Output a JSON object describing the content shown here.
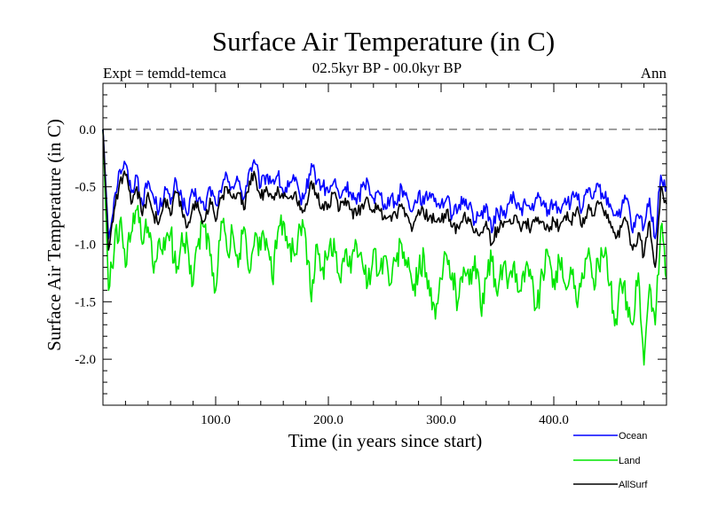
{
  "chart_data": {
    "type": "line",
    "title": "Surface Air Temperature (in C)",
    "subtitle": "02.5kyr BP - 00.0kyr BP",
    "expt_label": "Expt = temdd-temca",
    "season_label": "Ann",
    "xlabel": "Time (in years since start)",
    "ylabel": "Surface Air Temperature (in C)",
    "xlim": [
      0,
      500
    ],
    "ylim": [
      -2.4,
      0.4
    ],
    "x_ticks": [
      100,
      200,
      300,
      400
    ],
    "x_tick_labels": [
      "100.0",
      "200.0",
      "300.0",
      "400.0"
    ],
    "y_ticks": [
      0.0,
      -0.5,
      -1.0,
      -1.5,
      -2.0
    ],
    "y_tick_labels": [
      "0.0",
      "-0.5",
      "-1.0",
      "-1.5",
      "-2.0"
    ],
    "reference_line": {
      "y": 0.0,
      "style": "dashed",
      "color": "#808080"
    },
    "legend_position": "bottom-right, below plot",
    "series": [
      {
        "name": "Ocean",
        "color": "#0000ff",
        "x": [
          0,
          5,
          10,
          15,
          20,
          25,
          30,
          35,
          40,
          45,
          50,
          55,
          60,
          65,
          70,
          75,
          80,
          85,
          90,
          95,
          100,
          105,
          110,
          115,
          120,
          125,
          130,
          135,
          140,
          145,
          150,
          155,
          160,
          165,
          170,
          175,
          180,
          185,
          190,
          195,
          200,
          205,
          210,
          215,
          220,
          225,
          230,
          235,
          240,
          245,
          250,
          255,
          260,
          265,
          270,
          275,
          280,
          285,
          290,
          295,
          300,
          305,
          310,
          315,
          320,
          325,
          330,
          335,
          340,
          345,
          350,
          355,
          360,
          365,
          370,
          375,
          380,
          385,
          390,
          395,
          400,
          405,
          410,
          415,
          420,
          425,
          430,
          435,
          440,
          445,
          450,
          455,
          460,
          465,
          470,
          475,
          480,
          485,
          490,
          495,
          500
        ],
        "values": [
          0.0,
          -0.95,
          -0.6,
          -0.35,
          -0.3,
          -0.55,
          -0.4,
          -0.65,
          -0.45,
          -0.6,
          -0.7,
          -0.5,
          -0.65,
          -0.45,
          -0.6,
          -0.75,
          -0.55,
          -0.6,
          -0.7,
          -0.5,
          -0.65,
          -0.55,
          -0.4,
          -0.5,
          -0.45,
          -0.6,
          -0.35,
          -0.3,
          -0.5,
          -0.4,
          -0.45,
          -0.4,
          -0.55,
          -0.5,
          -0.45,
          -0.6,
          -0.55,
          -0.3,
          -0.45,
          -0.5,
          -0.55,
          -0.45,
          -0.6,
          -0.5,
          -0.55,
          -0.65,
          -0.5,
          -0.45,
          -0.6,
          -0.55,
          -0.65,
          -0.6,
          -0.65,
          -0.5,
          -0.6,
          -0.7,
          -0.55,
          -0.65,
          -0.55,
          -0.6,
          -0.65,
          -0.6,
          -0.75,
          -0.7,
          -0.6,
          -0.65,
          -0.8,
          -0.75,
          -0.65,
          -0.9,
          -0.7,
          -0.75,
          -0.65,
          -0.6,
          -0.7,
          -0.65,
          -0.7,
          -0.6,
          -0.65,
          -0.7,
          -0.65,
          -0.7,
          -0.6,
          -0.65,
          -0.55,
          -0.7,
          -0.55,
          -0.6,
          -0.5,
          -0.6,
          -0.65,
          -0.75,
          -0.7,
          -0.6,
          -0.9,
          -0.75,
          -0.85,
          -0.6,
          -0.95,
          -0.4,
          -0.5
        ]
      },
      {
        "name": "Land",
        "color": "#00e600",
        "x": [
          0,
          5,
          10,
          15,
          20,
          25,
          30,
          35,
          40,
          45,
          50,
          55,
          60,
          65,
          70,
          75,
          80,
          85,
          90,
          95,
          100,
          105,
          110,
          115,
          120,
          125,
          130,
          135,
          140,
          145,
          150,
          155,
          160,
          165,
          170,
          175,
          180,
          185,
          190,
          195,
          200,
          205,
          210,
          215,
          220,
          225,
          230,
          235,
          240,
          245,
          250,
          255,
          260,
          265,
          270,
          275,
          280,
          285,
          290,
          295,
          300,
          305,
          310,
          315,
          320,
          325,
          330,
          335,
          340,
          345,
          350,
          355,
          360,
          365,
          370,
          375,
          380,
          385,
          390,
          395,
          400,
          405,
          410,
          415,
          420,
          425,
          430,
          435,
          440,
          445,
          450,
          455,
          460,
          465,
          470,
          475,
          480,
          485,
          490,
          495,
          500
        ],
        "values": [
          0.0,
          -1.4,
          -1.05,
          -0.8,
          -1.2,
          -0.9,
          -0.7,
          -1.0,
          -0.85,
          -1.25,
          -0.95,
          -1.05,
          -0.9,
          -1.25,
          -0.9,
          -1.0,
          -1.35,
          -0.95,
          -0.85,
          -1.1,
          -1.4,
          -0.8,
          -1.05,
          -0.9,
          -1.2,
          -0.85,
          -1.25,
          -0.9,
          -1.05,
          -0.95,
          -1.3,
          -0.9,
          -0.8,
          -1.0,
          -1.1,
          -0.85,
          -0.95,
          -1.5,
          -1.0,
          -1.2,
          -1.1,
          -0.95,
          -1.3,
          -1.05,
          -1.25,
          -1.0,
          -1.15,
          -1.35,
          -1.05,
          -1.25,
          -1.1,
          -1.35,
          -1.15,
          -1.0,
          -1.2,
          -1.4,
          -1.25,
          -1.1,
          -1.45,
          -1.65,
          -1.3,
          -1.1,
          -1.25,
          -1.5,
          -1.2,
          -1.35,
          -1.1,
          -1.55,
          -1.3,
          -1.15,
          -1.45,
          -1.2,
          -1.3,
          -1.15,
          -1.4,
          -1.2,
          -1.3,
          -1.55,
          -1.25,
          -1.1,
          -1.3,
          -1.15,
          -1.35,
          -1.2,
          -1.5,
          -1.25,
          -1.1,
          -1.3,
          -1.2,
          -1.1,
          -1.35,
          -1.65,
          -1.35,
          -1.5,
          -1.7,
          -1.25,
          -2.05,
          -1.35,
          -1.7,
          -0.85,
          -1.3
        ]
      },
      {
        "name": "AllSurf",
        "color": "#000000",
        "x": [
          0,
          5,
          10,
          15,
          20,
          25,
          30,
          35,
          40,
          45,
          50,
          55,
          60,
          65,
          70,
          75,
          80,
          85,
          90,
          95,
          100,
          105,
          110,
          115,
          120,
          125,
          130,
          135,
          140,
          145,
          150,
          155,
          160,
          165,
          170,
          175,
          180,
          185,
          190,
          195,
          200,
          205,
          210,
          215,
          220,
          225,
          230,
          235,
          240,
          245,
          250,
          255,
          260,
          265,
          270,
          275,
          280,
          285,
          290,
          295,
          300,
          305,
          310,
          315,
          320,
          325,
          330,
          335,
          340,
          345,
          350,
          355,
          360,
          365,
          370,
          375,
          380,
          385,
          390,
          395,
          400,
          405,
          410,
          415,
          420,
          425,
          430,
          435,
          440,
          445,
          450,
          455,
          460,
          465,
          470,
          475,
          480,
          485,
          490,
          495,
          500
        ],
        "values": [
          0.0,
          -1.05,
          -0.7,
          -0.45,
          -0.4,
          -0.65,
          -0.5,
          -0.75,
          -0.55,
          -0.75,
          -0.8,
          -0.6,
          -0.75,
          -0.55,
          -0.7,
          -0.85,
          -0.65,
          -0.7,
          -0.8,
          -0.6,
          -0.8,
          -0.6,
          -0.5,
          -0.6,
          -0.55,
          -0.7,
          -0.45,
          -0.4,
          -0.6,
          -0.5,
          -0.6,
          -0.5,
          -0.6,
          -0.6,
          -0.55,
          -0.7,
          -0.65,
          -0.45,
          -0.6,
          -0.65,
          -0.65,
          -0.55,
          -0.7,
          -0.6,
          -0.7,
          -0.75,
          -0.65,
          -0.6,
          -0.7,
          -0.7,
          -0.75,
          -0.75,
          -0.75,
          -0.65,
          -0.75,
          -0.85,
          -0.7,
          -0.75,
          -0.75,
          -0.8,
          -0.8,
          -0.7,
          -0.85,
          -0.85,
          -0.75,
          -0.8,
          -0.9,
          -0.9,
          -0.8,
          -1.0,
          -0.85,
          -0.85,
          -0.8,
          -0.75,
          -0.85,
          -0.8,
          -0.85,
          -0.8,
          -0.8,
          -0.85,
          -0.8,
          -0.85,
          -0.75,
          -0.8,
          -0.7,
          -0.85,
          -0.7,
          -0.75,
          -0.65,
          -0.75,
          -0.8,
          -0.95,
          -0.85,
          -0.8,
          -1.05,
          -0.9,
          -1.1,
          -0.8,
          -1.2,
          -0.5,
          -0.65
        ]
      }
    ]
  }
}
